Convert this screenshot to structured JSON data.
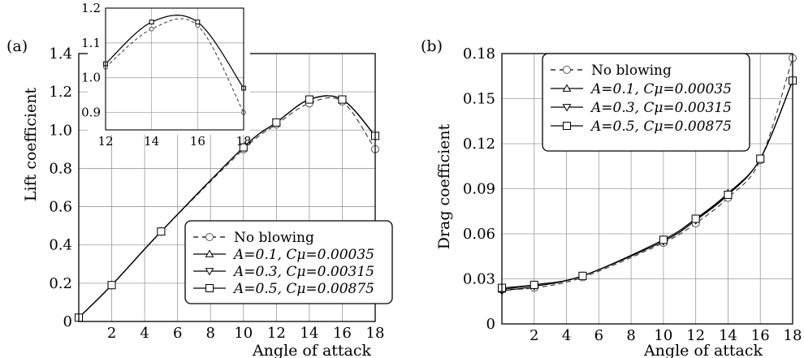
{
  "chart_data": [
    {
      "type": "line",
      "panel_label": "(a)",
      "xlabel": "Angle of attack",
      "ylabel": "Lift coefficient",
      "xlim": [
        0,
        18
      ],
      "ylim": [
        0,
        1.4
      ],
      "grid": true,
      "x_ticks": [
        "2",
        "4",
        "6",
        "8",
        "10",
        "12",
        "14",
        "16",
        "18"
      ],
      "y_ticks": [
        "0",
        "0.2",
        "0.4",
        "0.6",
        "0.8",
        "1.0",
        "1.2",
        "1.4"
      ],
      "legend_position": "lower-right",
      "x": [
        0,
        2,
        5,
        10,
        12,
        14,
        16,
        18
      ],
      "series": [
        {
          "name": "No blowing",
          "marker": "circle",
          "dash": "dashed",
          "values": [
            0.02,
            0.19,
            0.47,
            0.9,
            1.03,
            1.14,
            1.15,
            0.9
          ]
        },
        {
          "name": "A=0.1,  Cμ=0.00035",
          "marker": "triangle-up",
          "dash": "solid",
          "values": [
            0.02,
            0.19,
            0.47,
            0.91,
            1.04,
            1.16,
            1.16,
            0.97
          ]
        },
        {
          "name": "A=0.3,  Cμ=0.00315",
          "marker": "triangle-down",
          "dash": "solid",
          "values": [
            0.02,
            0.19,
            0.47,
            0.91,
            1.04,
            1.16,
            1.16,
            0.97
          ]
        },
        {
          "name": "A=0.5,  Cμ=0.00875",
          "marker": "square",
          "dash": "solid",
          "values": [
            0.02,
            0.19,
            0.47,
            0.91,
            1.04,
            1.16,
            1.16,
            0.97
          ]
        }
      ],
      "inset": {
        "xlim": [
          12,
          18
        ],
        "ylim": [
          0.85,
          1.2
        ],
        "x_ticks": [
          "12",
          "14",
          "16",
          "18"
        ],
        "y_ticks": [
          "0.9",
          "1.0",
          "1.1",
          "1.2"
        ]
      }
    },
    {
      "type": "line",
      "panel_label": "(b)",
      "xlabel": "Angle of attack",
      "ylabel": "Drag coefficient",
      "xlim": [
        0,
        18
      ],
      "ylim": [
        0,
        0.18
      ],
      "grid": true,
      "x_ticks": [
        "2",
        "4",
        "6",
        "8",
        "10",
        "12",
        "14",
        "16",
        "18"
      ],
      "y_ticks": [
        "0",
        "0.03",
        "0.06",
        "0.09",
        "0.12",
        "0.15",
        "0.18"
      ],
      "legend_position": "top-left",
      "x": [
        0,
        2,
        5,
        10,
        12,
        14,
        16,
        18
      ],
      "series": [
        {
          "name": "No blowing",
          "marker": "circle",
          "dash": "dashed",
          "values": [
            0.023,
            0.024,
            0.031,
            0.054,
            0.067,
            0.084,
            0.109,
            0.177
          ]
        },
        {
          "name": "A=0.1,  Cμ=0.00035",
          "marker": "triangle-up",
          "dash": "solid",
          "values": [
            0.023,
            0.026,
            0.032,
            0.056,
            0.07,
            0.087,
            0.11,
            0.162
          ]
        },
        {
          "name": "A=0.3,  Cμ=0.00315",
          "marker": "triangle-down",
          "dash": "solid",
          "values": [
            0.022,
            0.025,
            0.032,
            0.055,
            0.069,
            0.086,
            0.11,
            0.162
          ]
        },
        {
          "name": "A=0.5,  Cμ=0.00875",
          "marker": "square",
          "dash": "solid",
          "values": [
            0.024,
            0.026,
            0.032,
            0.056,
            0.07,
            0.086,
            0.11,
            0.162
          ]
        }
      ]
    }
  ]
}
